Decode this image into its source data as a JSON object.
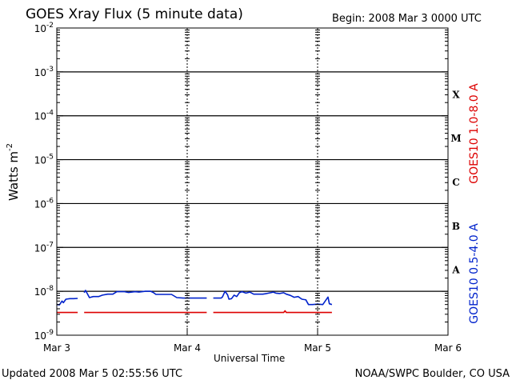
{
  "chart_data": {
    "type": "line",
    "title": "GOES Xray Flux (5 minute data)",
    "begin_label": "Begin:  2008 Mar 3 0000 UTC",
    "xlabel": "Universal Time",
    "ylabel_base": "Watts m",
    "ylabel_exp": "-2",
    "x_unit": "day",
    "x_ticks": [
      "Mar 3",
      "Mar 4",
      "Mar 5",
      "Mar 6"
    ],
    "xlim": [
      0,
      3
    ],
    "yscale": "log",
    "ylim": [
      1e-09,
      0.01
    ],
    "y_ticks": [
      {
        "base": "10",
        "exp": "-9",
        "value": 1e-09
      },
      {
        "base": "10",
        "exp": "-8",
        "value": 1e-08
      },
      {
        "base": "10",
        "exp": "-7",
        "value": 1e-07
      },
      {
        "base": "10",
        "exp": "-6",
        "value": 1e-06
      },
      {
        "base": "10",
        "exp": "-5",
        "value": 1e-05
      },
      {
        "base": "10",
        "exp": "-4",
        "value": 0.0001
      },
      {
        "base": "10",
        "exp": "-3",
        "value": 0.001
      },
      {
        "base": "10",
        "exp": "-2",
        "value": 0.01
      }
    ],
    "flare_classes": [
      {
        "label": "A",
        "value": 1e-08
      },
      {
        "label": "B",
        "value": 1e-07
      },
      {
        "label": "C",
        "value": 1e-06
      },
      {
        "label": "M",
        "value": 1e-05
      },
      {
        "label": "X",
        "value": 0.0001
      }
    ],
    "grid": "horizontal lines at each decade above 1e-9; dotted vertical day markers",
    "legend_position": "right",
    "series": [
      {
        "name": "GOES10 1.0-8.0 A",
        "color": "#dd0000",
        "segments": [
          [
            [
              0.0,
              3.3e-09
            ],
            [
              0.16,
              3.3e-09
            ]
          ],
          [
            [
              0.21,
              3.3e-09
            ],
            [
              1.15,
              3.3e-09
            ]
          ],
          [
            [
              1.2,
              3.3e-09
            ],
            [
              1.74,
              3.3e-09
            ],
            [
              1.75,
              3.6e-09
            ],
            [
              1.76,
              3.3e-09
            ],
            [
              2.11,
              3.3e-09
            ]
          ]
        ]
      },
      {
        "name": "GOES10 0.5-4.0 A",
        "color": "#0022cc",
        "segments": [
          [
            [
              0.0,
              5e-09
            ],
            [
              0.02,
              4.9e-09
            ],
            [
              0.04,
              6e-09
            ],
            [
              0.05,
              5.5e-09
            ],
            [
              0.07,
              6.6e-09
            ],
            [
              0.1,
              6.8e-09
            ],
            [
              0.13,
              6.8e-09
            ],
            [
              0.16,
              6.9e-09
            ]
          ],
          [
            [
              0.21,
              9.3e-09
            ],
            [
              0.22,
              1.05e-08
            ],
            [
              0.23,
              9.3e-09
            ],
            [
              0.25,
              7.2e-09
            ],
            [
              0.28,
              7.6e-09
            ],
            [
              0.32,
              7.6e-09
            ],
            [
              0.35,
              8.2e-09
            ],
            [
              0.39,
              8.6e-09
            ],
            [
              0.43,
              8.6e-09
            ],
            [
              0.46,
              9.8e-09
            ],
            [
              0.52,
              9.8e-09
            ],
            [
              0.55,
              9.4e-09
            ],
            [
              0.6,
              9.8e-09
            ],
            [
              0.63,
              9.6e-09
            ],
            [
              0.68,
              1e-08
            ],
            [
              0.72,
              1e-08
            ],
            [
              0.74,
              9.4e-09
            ],
            [
              0.76,
              8.5e-09
            ],
            [
              0.84,
              8.5e-09
            ],
            [
              0.88,
              8.5e-09
            ],
            [
              0.92,
              7.2e-09
            ],
            [
              0.97,
              7e-09
            ],
            [
              1.06,
              7e-09
            ],
            [
              1.1,
              7e-09
            ],
            [
              1.15,
              7e-09
            ]
          ],
          [
            [
              1.2,
              7e-09
            ],
            [
              1.26,
              7e-09
            ],
            [
              1.27,
              7.4e-09
            ],
            [
              1.29,
              1e-08
            ],
            [
              1.31,
              8.3e-09
            ],
            [
              1.32,
              6.6e-09
            ],
            [
              1.34,
              6.8e-09
            ],
            [
              1.36,
              8.2e-09
            ],
            [
              1.38,
              7.6e-09
            ],
            [
              1.4,
              9.3e-09
            ],
            [
              1.42,
              9.8e-09
            ],
            [
              1.45,
              9.1e-09
            ],
            [
              1.48,
              9.6e-09
            ],
            [
              1.51,
              8.6e-09
            ],
            [
              1.54,
              8.6e-09
            ],
            [
              1.58,
              8.6e-09
            ],
            [
              1.61,
              8.9e-09
            ],
            [
              1.64,
              9.3e-09
            ],
            [
              1.66,
              9.6e-09
            ],
            [
              1.68,
              9.1e-09
            ],
            [
              1.71,
              8.9e-09
            ],
            [
              1.74,
              9.3e-09
            ],
            [
              1.76,
              8.6e-09
            ],
            [
              1.79,
              8.1e-09
            ],
            [
              1.82,
              7.3e-09
            ],
            [
              1.85,
              7.6e-09
            ],
            [
              1.88,
              6.6e-09
            ],
            [
              1.91,
              6.4e-09
            ],
            [
              1.93,
              5e-09
            ],
            [
              1.96,
              5e-09
            ],
            [
              2.0,
              5.1e-09
            ],
            [
              2.04,
              5e-09
            ],
            [
              2.08,
              7.4e-09
            ],
            [
              2.09,
              5.2e-09
            ],
            [
              2.11,
              5e-09
            ]
          ]
        ]
      }
    ]
  },
  "footer": {
    "updated": "Updated 2008 Mar  5 02:55:56 UTC",
    "credit": "NOAA/SWPC Boulder, CO USA"
  }
}
